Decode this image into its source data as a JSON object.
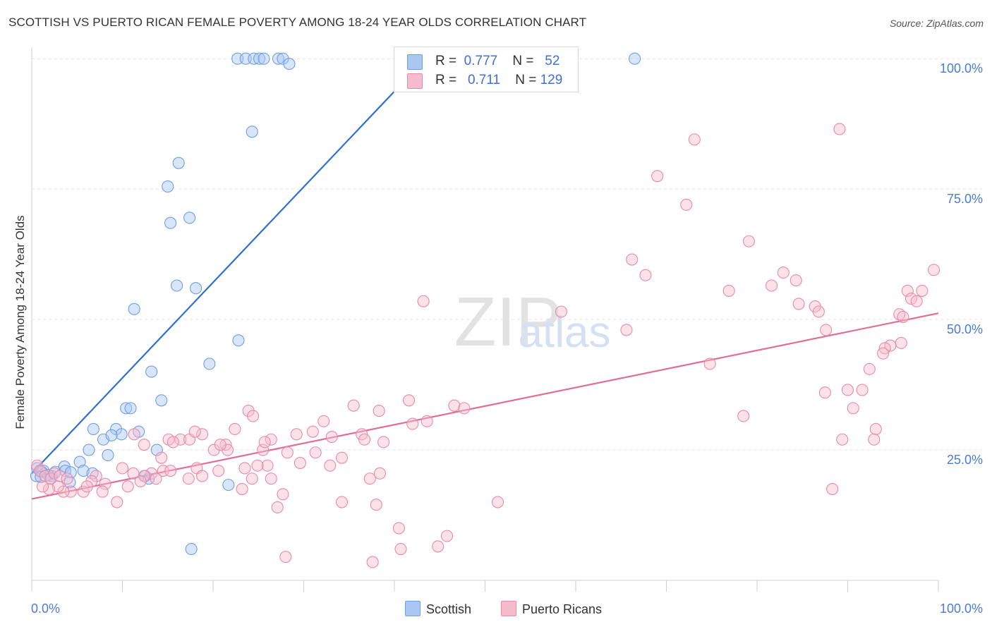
{
  "chart_data": {
    "type": "scatter",
    "title": "SCOTTISH VS PUERTO RICAN FEMALE POVERTY AMONG 18-24 YEAR OLDS CORRELATION CHART",
    "source": "Source: ZipAtlas.com",
    "xlabel": "",
    "ylabel": "Female Poverty Among 18-24 Year Olds",
    "xlim": [
      0,
      100
    ],
    "ylim": [
      0,
      103
    ],
    "x_tick_labels": {
      "left": "0.0%",
      "right": "100.0%"
    },
    "y_ticks": [
      25,
      50,
      75,
      100
    ],
    "y_tick_labels": [
      "25.0%",
      "50.0%",
      "75.0%",
      "100.0%"
    ],
    "watermark": "ZIPatlas",
    "series": [
      {
        "name": "Scottish",
        "color": "#6e9ee8",
        "fill": "#aac7f2",
        "r_label": "R =",
        "r_value": "0.777",
        "n_label": "N =",
        "n_value": "52",
        "trend": {
          "x1": 0,
          "y1": 20.5,
          "x2": 43.7,
          "y2": 100.5
        },
        "points": [
          [
            22.7,
            100
          ],
          [
            23.6,
            100
          ],
          [
            24.5,
            100
          ],
          [
            25.1,
            100
          ],
          [
            25.6,
            100
          ],
          [
            27.2,
            100
          ],
          [
            27.7,
            100
          ],
          [
            28.4,
            99
          ],
          [
            66.5,
            100
          ],
          [
            24.3,
            86
          ],
          [
            16.2,
            80
          ],
          [
            15.0,
            75.5
          ],
          [
            15.3,
            68.5
          ],
          [
            17.4,
            69.5
          ],
          [
            16.0,
            56.5
          ],
          [
            18.1,
            56
          ],
          [
            11.3,
            52
          ],
          [
            22.8,
            46
          ],
          [
            19.6,
            41.5
          ],
          [
            13.2,
            40
          ],
          [
            14.3,
            34.5
          ],
          [
            10.4,
            33
          ],
          [
            10.9,
            33
          ],
          [
            6.8,
            29
          ],
          [
            9.3,
            29
          ],
          [
            9.9,
            28
          ],
          [
            11.8,
            28.5
          ],
          [
            7.9,
            27
          ],
          [
            8.8,
            27.8
          ],
          [
            6.3,
            25
          ],
          [
            13.8,
            25
          ],
          [
            8.4,
            24
          ],
          [
            5.3,
            22.7
          ],
          [
            3.6,
            21.8
          ],
          [
            5.7,
            21
          ],
          [
            2.2,
            20
          ],
          [
            0.6,
            21.5
          ],
          [
            1.3,
            21
          ],
          [
            2.6,
            20.8
          ],
          [
            3.7,
            21
          ],
          [
            4.3,
            20.7
          ],
          [
            0.5,
            20
          ],
          [
            1.1,
            20.8
          ],
          [
            1.8,
            20.2
          ],
          [
            1.0,
            19.8
          ],
          [
            2.1,
            19.5
          ],
          [
            6.7,
            20.5
          ],
          [
            12.5,
            20
          ],
          [
            12.9,
            19.5
          ],
          [
            4.2,
            18.8
          ],
          [
            21.7,
            18.3
          ],
          [
            17.6,
            6
          ]
        ]
      },
      {
        "name": "Puerto Ricans",
        "color": "#e88aa8",
        "fill": "#f6bccd",
        "r_label": "R =",
        "r_value": "0.711",
        "n_label": "N =",
        "n_value": "129",
        "trend": {
          "x1": 0,
          "y1": 15.6,
          "x2": 100,
          "y2": 51.2
        },
        "points": [
          [
            89.1,
            86.5
          ],
          [
            73.1,
            84.5
          ],
          [
            69.0,
            77.5
          ],
          [
            72.2,
            72
          ],
          [
            79.1,
            65
          ],
          [
            99.5,
            59.5
          ],
          [
            66.2,
            61.5
          ],
          [
            67.7,
            58.5
          ],
          [
            82.9,
            59
          ],
          [
            84.3,
            57.5
          ],
          [
            81.6,
            56.5
          ],
          [
            76.9,
            55.5
          ],
          [
            96.6,
            55.5
          ],
          [
            98.2,
            55.5
          ],
          [
            97.0,
            54
          ],
          [
            97.6,
            53.5
          ],
          [
            84.6,
            53
          ],
          [
            86.4,
            52.5
          ],
          [
            86.8,
            51.5
          ],
          [
            95.7,
            51
          ],
          [
            96.1,
            50.5
          ],
          [
            87.6,
            48
          ],
          [
            94.7,
            45
          ],
          [
            95.9,
            45.5
          ],
          [
            94.1,
            44.5
          ],
          [
            93.9,
            43.5
          ],
          [
            74.8,
            41.5
          ],
          [
            92.4,
            40.5
          ],
          [
            87.5,
            36
          ],
          [
            90.0,
            36.5
          ],
          [
            91.6,
            36.5
          ],
          [
            90.6,
            33
          ],
          [
            78.5,
            31.5
          ],
          [
            93.1,
            29
          ],
          [
            89.4,
            27
          ],
          [
            92.9,
            27
          ],
          [
            88.3,
            17.5
          ],
          [
            65.6,
            48
          ],
          [
            58.4,
            51.5
          ],
          [
            43.2,
            53.5
          ],
          [
            35.5,
            33.5
          ],
          [
            46.6,
            33.5
          ],
          [
            41.6,
            34.5
          ],
          [
            47.7,
            33
          ],
          [
            38.3,
            32.5
          ],
          [
            23.9,
            32.5
          ],
          [
            43.6,
            30.5
          ],
          [
            24.4,
            31.5
          ],
          [
            42.0,
            30
          ],
          [
            32.2,
            30.5
          ],
          [
            22.4,
            29
          ],
          [
            18.8,
            28
          ],
          [
            29.2,
            28
          ],
          [
            31.0,
            28.5
          ],
          [
            36.4,
            28
          ],
          [
            33.1,
            27.5
          ],
          [
            38.8,
            26.5
          ],
          [
            36.7,
            27
          ],
          [
            26.4,
            27
          ],
          [
            15.1,
            27
          ],
          [
            16.4,
            27
          ],
          [
            17.4,
            27
          ],
          [
            15.6,
            26.5
          ],
          [
            21.4,
            26
          ],
          [
            12.4,
            26
          ],
          [
            11.3,
            28
          ],
          [
            20.1,
            25
          ],
          [
            21.6,
            25
          ],
          [
            25.5,
            25
          ],
          [
            28.2,
            24.5
          ],
          [
            31.3,
            24.5
          ],
          [
            34.2,
            23.5
          ],
          [
            14.3,
            23.5
          ],
          [
            18.2,
            21.5
          ],
          [
            20.6,
            21
          ],
          [
            23.5,
            21.5
          ],
          [
            26.0,
            22
          ],
          [
            29.6,
            22.5
          ],
          [
            32.9,
            22
          ],
          [
            14.5,
            21
          ],
          [
            13.2,
            20.5
          ],
          [
            15.3,
            21
          ],
          [
            18.8,
            20
          ],
          [
            12.4,
            20
          ],
          [
            10.0,
            21.5
          ],
          [
            11.2,
            20.5
          ],
          [
            13.7,
            19.5
          ],
          [
            12.0,
            19
          ],
          [
            10.6,
            18
          ],
          [
            17.3,
            19.5
          ],
          [
            24.3,
            19.5
          ],
          [
            26.4,
            19.5
          ],
          [
            37.3,
            19.5
          ],
          [
            38.4,
            20.5
          ],
          [
            23.2,
            17.5
          ],
          [
            8.1,
            18.5
          ],
          [
            7.1,
            20
          ],
          [
            6.6,
            19
          ],
          [
            5.7,
            17
          ],
          [
            4.3,
            17
          ],
          [
            3.5,
            17
          ],
          [
            2.9,
            18
          ],
          [
            1.9,
            17.5
          ],
          [
            1.2,
            18
          ],
          [
            0.6,
            22
          ],
          [
            0.9,
            21
          ],
          [
            1.5,
            20
          ],
          [
            2.1,
            19.5
          ],
          [
            2.5,
            20.5
          ],
          [
            3.1,
            20
          ],
          [
            3.9,
            19.5
          ],
          [
            6.1,
            18
          ],
          [
            7.8,
            17
          ],
          [
            9.4,
            15
          ],
          [
            27.7,
            16.5
          ],
          [
            34.2,
            15
          ],
          [
            38.0,
            14.5
          ],
          [
            51.4,
            15
          ],
          [
            27.1,
            14
          ],
          [
            40.5,
            10
          ],
          [
            45.8,
            8.5
          ],
          [
            40.7,
            6
          ],
          [
            44.8,
            6.5
          ],
          [
            28.0,
            4.5
          ],
          [
            37.6,
            3.5
          ],
          [
            18.0,
            28.5
          ],
          [
            25.7,
            26.5
          ],
          [
            20.8,
            26
          ],
          [
            24.9,
            22
          ]
        ]
      }
    ]
  }
}
